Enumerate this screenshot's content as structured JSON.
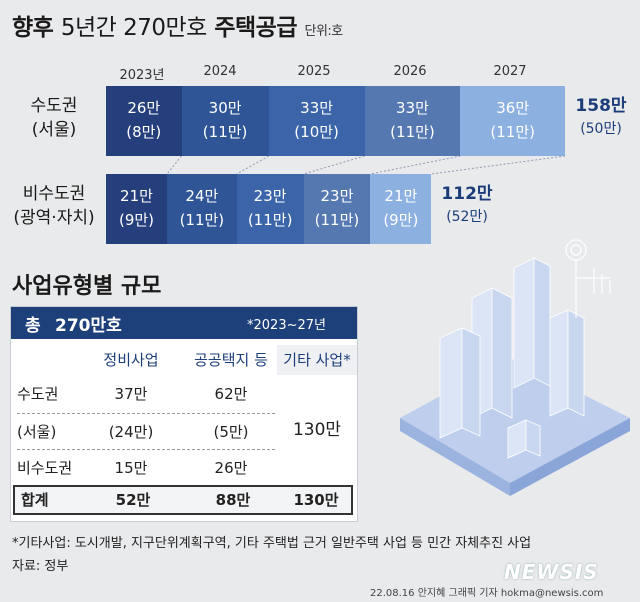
{
  "title": {
    "bold1": "향후",
    "light": "5년간 270만호",
    "bold2": "주택공급",
    "unit": "단위:호"
  },
  "chart_data": {
    "type": "bar",
    "orientation": "horizontal-stacked",
    "categories": [
      "2023년",
      "2024",
      "2025",
      "2026",
      "2027"
    ],
    "series": [
      {
        "name": "수도권",
        "name_sub": "(서울)",
        "values": [
          26,
          30,
          33,
          33,
          36
        ],
        "labels": [
          "26만",
          "30만",
          "33만",
          "33만",
          "36만"
        ],
        "sub_labels": [
          "(8만)",
          "(11만)",
          "(10만)",
          "(11만)",
          "(11만)"
        ],
        "total": "158만",
        "total_sub": "(50만)",
        "colors": [
          "#253f7d",
          "#2f5596",
          "#3b65a8",
          "#5578b0",
          "#8cb0e0"
        ]
      },
      {
        "name": "비수도권",
        "name_sub": "(광역·자치)",
        "values": [
          21,
          24,
          23,
          23,
          21
        ],
        "labels": [
          "21만",
          "24만",
          "23만",
          "23만",
          "21만"
        ],
        "sub_labels": [
          "(9만)",
          "(11만)",
          "(11만)",
          "(11만)",
          "(9만)"
        ],
        "total": "112만",
        "total_sub": "(52만)",
        "colors": [
          "#253f7d",
          "#2f5596",
          "#3b65a8",
          "#5578b0",
          "#8cb0e0"
        ]
      }
    ]
  },
  "table": {
    "section_title": "사업유형별 규모",
    "total_label": "총",
    "total_value": "270만호",
    "period_note": "*2023~27년",
    "headers": [
      "정비사업",
      "공공택지 등",
      "기타 사업*"
    ],
    "rows": [
      {
        "label": "수도권",
        "c1": "37만",
        "c2": "62만"
      },
      {
        "label": "(서울)",
        "c1": "(24만)",
        "c2": "(5만)"
      },
      {
        "label": "비수도권",
        "c1": "15만",
        "c2": "26만"
      }
    ],
    "merged_other": "130만",
    "sum": {
      "label": "합계",
      "c1": "52만",
      "c2": "88만",
      "c3": "130만"
    }
  },
  "footnote": "*기타사업: 도시개발, 지구단위계획구역, 기타 주택법 근거 일반주택 사업 등 민간 자체추진 사업",
  "source": "자료: 정부",
  "credit": "22.08.16 안지혜 그래픽 기자 hokma@newsis.com",
  "logo": "NEWSIS"
}
